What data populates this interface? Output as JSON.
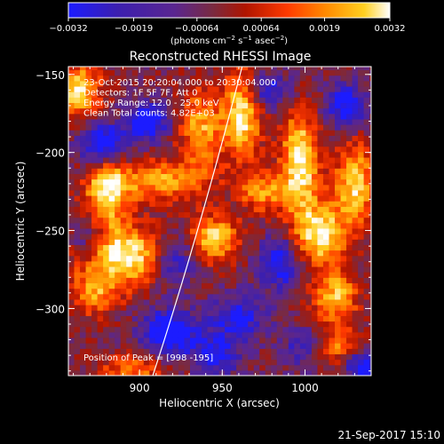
{
  "chart_data": {
    "type": "heatmap",
    "title": "Reconstructed RHESSI Image",
    "xlabel": "Heliocentric X (arcsec)",
    "ylabel": "Heliocentric Y (arcsec)",
    "xlim": [
      857,
      1040
    ],
    "ylim": [
      -343,
      -145
    ],
    "x_ticks": [
      900,
      950,
      1000
    ],
    "y_ticks": [
      -150,
      -200,
      -250,
      -300
    ],
    "x_tick_labels": [
      "900",
      "950",
      "1000"
    ],
    "y_tick_labels": [
      "−150",
      "−200",
      "−250",
      "−300"
    ],
    "colorbar": {
      "ticks": [
        -0.0032,
        -0.0019,
        -0.00064,
        0.00064,
        0.0019,
        0.0032
      ],
      "tick_labels": [
        "−0.0032",
        "−0.0019",
        "−0.00064",
        "0.00064",
        "0.0019",
        "0.0032"
      ],
      "units_text": "(photons cm",
      "units_exp1": "−2",
      "units_mid": " s",
      "units_exp2": "−1",
      "units_end": " asec",
      "units_exp3": "−2",
      "units_close": ")",
      "colormap": [
        "#1c1cff",
        "#3b1fb0",
        "#5a2690",
        "#7a2a40",
        "#b01500",
        "#ff3a00",
        "#ff8a00",
        "#ffd020",
        "#ffffff"
      ]
    },
    "annotations": [
      "23-Oct-2015 20:20:04.000 to 20:30:04.000",
      "Detectors: 1F 5F 7F, Att 0",
      "Energy Range: 12.0 - 25.0 keV",
      "Clean    Total counts: 4.82E+03"
    ],
    "peak_text": "Position of Peak = [998 -195]",
    "peak_position": [
      998,
      -195
    ],
    "limb_curve": [
      [
        908,
        -343
      ],
      [
        935,
        -250
      ],
      [
        962,
        -145
      ]
    ],
    "blobs": [
      {
        "x": 862,
        "y": -160,
        "amp": 0.9,
        "sx": 10,
        "sy": 12
      },
      {
        "x": 880,
        "y": -225,
        "amp": 0.9,
        "sx": 9,
        "sy": 18
      },
      {
        "x": 893,
        "y": -266,
        "amp": 1.0,
        "sx": 20,
        "sy": 13
      },
      {
        "x": 873,
        "y": -290,
        "amp": 0.6,
        "sx": 10,
        "sy": 10
      },
      {
        "x": 913,
        "y": -218,
        "amp": 0.7,
        "sx": 20,
        "sy": 9
      },
      {
        "x": 937,
        "y": -185,
        "amp": 0.7,
        "sx": 9,
        "sy": 18
      },
      {
        "x": 945,
        "y": -255,
        "amp": 0.85,
        "sx": 11,
        "sy": 10
      },
      {
        "x": 962,
        "y": -175,
        "amp": 0.95,
        "sx": 8,
        "sy": 20
      },
      {
        "x": 975,
        "y": -225,
        "amp": 0.65,
        "sx": 10,
        "sy": 9
      },
      {
        "x": 997,
        "y": -205,
        "amp": 1.0,
        "sx": 8,
        "sy": 22
      },
      {
        "x": 1008,
        "y": -252,
        "amp": 0.95,
        "sx": 11,
        "sy": 14
      },
      {
        "x": 1018,
        "y": -292,
        "amp": 0.75,
        "sx": 10,
        "sy": 12
      },
      {
        "x": 1030,
        "y": -220,
        "amp": 0.85,
        "sx": 9,
        "sy": 18
      },
      {
        "x": 895,
        "y": -340,
        "amp": 0.55,
        "sx": 14,
        "sy": 8
      },
      {
        "x": 1020,
        "y": -325,
        "amp": 0.6,
        "sx": 12,
        "sy": 8
      },
      {
        "x": 878,
        "y": -195,
        "amp": -0.9,
        "sx": 10,
        "sy": 10
      },
      {
        "x": 905,
        "y": -180,
        "amp": -0.8,
        "sx": 9,
        "sy": 8
      },
      {
        "x": 920,
        "y": -268,
        "amp": -0.8,
        "sx": 10,
        "sy": 12
      },
      {
        "x": 918,
        "y": -315,
        "amp": -0.9,
        "sx": 12,
        "sy": 10
      },
      {
        "x": 870,
        "y": -255,
        "amp": -0.5,
        "sx": 8,
        "sy": 10
      },
      {
        "x": 978,
        "y": -160,
        "amp": -0.6,
        "sx": 10,
        "sy": 8
      },
      {
        "x": 985,
        "y": -270,
        "amp": -0.7,
        "sx": 9,
        "sy": 12
      },
      {
        "x": 960,
        "y": -305,
        "amp": -0.6,
        "sx": 12,
        "sy": 10
      },
      {
        "x": 1025,
        "y": -170,
        "amp": -0.7,
        "sx": 9,
        "sy": 10
      },
      {
        "x": 1035,
        "y": -335,
        "amp": -0.8,
        "sx": 8,
        "sy": 8
      },
      {
        "x": 1000,
        "y": -325,
        "amp": -0.5,
        "sx": 10,
        "sy": 9
      },
      {
        "x": 947,
        "y": -330,
        "amp": -0.6,
        "sx": 10,
        "sy": 9
      }
    ]
  },
  "footer": {
    "timestamp": "21-Sep-2017 15:10"
  }
}
